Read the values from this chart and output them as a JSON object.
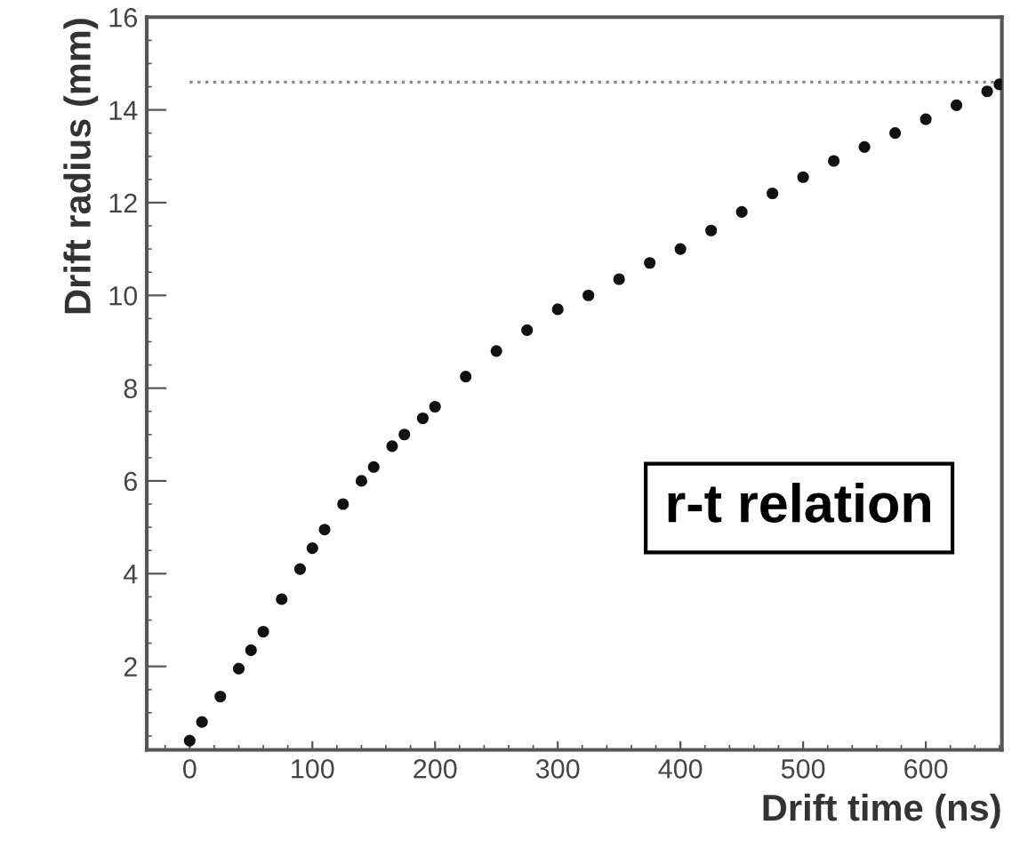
{
  "chart_data": {
    "type": "scatter",
    "xlabel": "Drift time (ns)",
    "ylabel": "Drift radius (mm)",
    "x": [
      0,
      10,
      25,
      40,
      50,
      60,
      75,
      90,
      100,
      110,
      125,
      140,
      150,
      165,
      175,
      190,
      200,
      225,
      250,
      275,
      300,
      325,
      350,
      375,
      400,
      425,
      450,
      475,
      500,
      525,
      550,
      575,
      600,
      625,
      650,
      660
    ],
    "series": [
      {
        "color": "#111111",
        "values": [
          0.4,
          0.8,
          1.35,
          1.95,
          2.35,
          2.75,
          3.45,
          4.1,
          4.55,
          4.95,
          5.5,
          6.0,
          6.3,
          6.75,
          7.0,
          7.35,
          7.6,
          8.25,
          8.8,
          9.25,
          9.7,
          10.0,
          10.35,
          10.7,
          11.0,
          11.4,
          11.8,
          12.2,
          12.55,
          12.9,
          13.2,
          13.5,
          13.8,
          14.1,
          14.4,
          14.55
        ]
      }
    ],
    "marker": "circle",
    "xlim": [
      -35,
      662
    ],
    "ylim": [
      0.2,
      16
    ],
    "xticks": [
      0,
      100,
      200,
      300,
      400,
      500,
      600
    ],
    "yticks": [
      2,
      4,
      6,
      8,
      10,
      12,
      14,
      16
    ],
    "ref_lines": [
      {
        "axis": "y",
        "value": 14.6,
        "color": "#888888",
        "line_style": "dotted"
      }
    ],
    "annotations": [
      "r-t relation"
    ],
    "grid": false
  }
}
